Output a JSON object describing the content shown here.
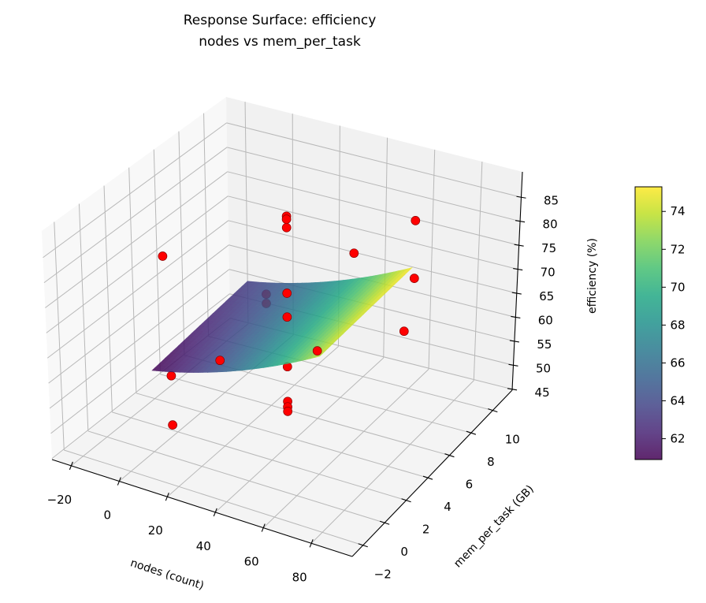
{
  "chart_data": {
    "type": "surface",
    "title": [
      "Response Surface: efficiency",
      "nodes vs mem_per_task"
    ],
    "xlabel": "nodes (count)",
    "ylabel": "mem_per_task (GB)",
    "zlabel": "efficiency (%)",
    "xlim": [
      -28,
      97
    ],
    "ylim": [
      -3,
      11.8
    ],
    "zlim": [
      44.8,
      90.3
    ],
    "xticks": [
      -20,
      0,
      20,
      40,
      60,
      80
    ],
    "yticks": [
      -2,
      0,
      2,
      4,
      6,
      8,
      10
    ],
    "zticks": [
      45,
      50,
      55,
      60,
      65,
      70,
      75,
      80,
      85
    ],
    "grid": true,
    "surface": {
      "colormap": "viridis",
      "x_range": [
        0,
        70
      ],
      "y_range": [
        0,
        8
      ],
      "model": {
        "const": 61,
        "x": 0.1,
        "y": 0.3,
        "x2": 0.0012,
        "xy": -0.002
      }
    },
    "points": {
      "color": "#ff0000",
      "edge_color": "#8b0000",
      "xyz": [
        [
          -15,
          4,
          74.2
        ],
        [
          37,
          4,
          89.3
        ],
        [
          37,
          4,
          88.7
        ],
        [
          37,
          4,
          87.0
        ],
        [
          37,
          4,
          73.8
        ],
        [
          37,
          4,
          69.0
        ],
        [
          37,
          4,
          59.0
        ],
        [
          37,
          4,
          52.0
        ],
        [
          37,
          4,
          50.9
        ],
        [
          37,
          4,
          50.0
        ],
        [
          8,
          0,
          61.1
        ],
        [
          8,
          0,
          51.3
        ],
        [
          37,
          -1.7,
          71.7
        ],
        [
          8,
          8,
          61.8
        ],
        [
          8,
          8,
          59.9
        ],
        [
          69,
          0,
          74.8
        ],
        [
          37,
          9.7,
          70.4
        ],
        [
          71,
          8,
          84.9
        ],
        [
          71,
          8,
          73.1
        ],
        [
          86,
          4,
          72.8
        ]
      ]
    },
    "colorbar": {
      "range": [
        60.9,
        75.3
      ],
      "ticks": [
        62,
        64,
        66,
        68,
        70,
        72,
        74
      ],
      "legend_placement": "right"
    }
  }
}
